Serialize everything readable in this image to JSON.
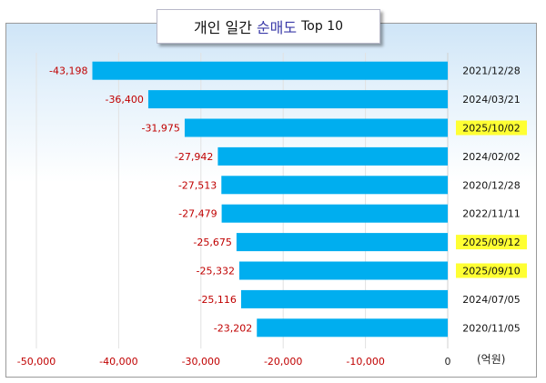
{
  "title": {
    "prefix": "개인 일간",
    "accent": "순매도",
    "suffix": "Top 10"
  },
  "unit_label": "(억원)",
  "colors": {
    "bar": "#00aeef",
    "value_label": "#c00000",
    "axis_label": "#c00000",
    "highlight": "#ffff33",
    "title_accent": "#3a3aa8"
  },
  "chart_data": {
    "type": "bar",
    "orientation": "horizontal",
    "title": "개인 일간 순매도 Top 10",
    "categories": [
      "2021/12/28",
      "2024/03/21",
      "2025/10/02",
      "2024/02/02",
      "2020/12/28",
      "2022/11/11",
      "2025/09/12",
      "2025/09/10",
      "2024/07/05",
      "2020/11/05"
    ],
    "values": [
      -43198,
      -36400,
      -31975,
      -27942,
      -27513,
      -27479,
      -25675,
      -25332,
      -25116,
      -23202
    ],
    "value_labels": [
      "-43,198",
      "-36,400",
      "-31,975",
      "-27,942",
      "-27,513",
      "-27,479",
      "-25,675",
      "-25,332",
      "-25,116",
      "-23,202"
    ],
    "highlighted_categories": [
      "2025/10/02",
      "2025/09/12",
      "2025/09/10"
    ],
    "xlim": [
      -50000,
      0
    ],
    "xticks": [
      -50000,
      -40000,
      -30000,
      -20000,
      -10000,
      0
    ],
    "xtick_labels": [
      "-50,000",
      "-40,000",
      "-30,000",
      "-20,000",
      "-10,000",
      "0"
    ],
    "unit": "(억원)",
    "grid": true
  }
}
